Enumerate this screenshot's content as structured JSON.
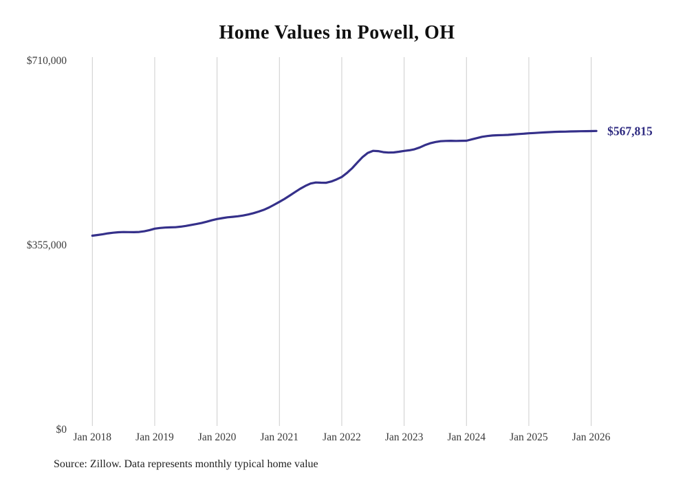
{
  "page": {
    "title": "Home Values in Powell, OH",
    "source_note": "Source: Zillow. Data represents monthly typical home value"
  },
  "chart_data": {
    "type": "line",
    "title": "Home Values in Powell, OH",
    "series_name": "Typical home value",
    "unit": "USD",
    "grid": "vertical-only",
    "legend": "none",
    "line_color": "#35308a",
    "end_label_color": "#2e2a80",
    "grid_color": "#cccccc",
    "ylim": [
      0,
      710000
    ],
    "y_ticks": [
      {
        "label": "$710,000",
        "value": 710000
      },
      {
        "label": "$355,000",
        "value": 355000
      },
      {
        "label": "$0",
        "value": 0
      }
    ],
    "x_ticks": [
      {
        "label": "Jan 2018",
        "month_index": 0
      },
      {
        "label": "Jan 2019",
        "month_index": 12
      },
      {
        "label": "Jan 2020",
        "month_index": 24
      },
      {
        "label": "Jan 2021",
        "month_index": 36
      },
      {
        "label": "Jan 2022",
        "month_index": 48
      },
      {
        "label": "Jan 2023",
        "month_index": 60
      },
      {
        "label": "Jan 2024",
        "month_index": 72
      },
      {
        "label": "Jan 2025",
        "month_index": 84
      },
      {
        "label": "Jan 2026",
        "month_index": 96
      }
    ],
    "x_months": [
      "2018-01",
      "2018-02",
      "2018-03",
      "2018-04",
      "2018-05",
      "2018-06",
      "2018-07",
      "2018-08",
      "2018-09",
      "2018-10",
      "2018-11",
      "2018-12",
      "2019-01",
      "2019-02",
      "2019-03",
      "2019-04",
      "2019-05",
      "2019-06",
      "2019-07",
      "2019-08",
      "2019-09",
      "2019-10",
      "2019-11",
      "2019-12",
      "2020-01",
      "2020-02",
      "2020-03",
      "2020-04",
      "2020-05",
      "2020-06",
      "2020-07",
      "2020-08",
      "2020-09",
      "2020-10",
      "2020-11",
      "2020-12",
      "2021-01",
      "2021-02",
      "2021-03",
      "2021-04",
      "2021-05",
      "2021-06",
      "2021-07",
      "2021-08",
      "2021-09",
      "2021-10",
      "2021-11",
      "2021-12",
      "2022-01",
      "2022-02",
      "2022-03",
      "2022-04",
      "2022-05",
      "2022-06",
      "2022-07",
      "2022-08",
      "2022-09",
      "2022-10",
      "2022-11",
      "2022-12",
      "2023-01",
      "2023-02",
      "2023-03",
      "2023-04",
      "2023-05",
      "2023-06",
      "2023-07",
      "2023-08",
      "2023-09",
      "2023-10",
      "2023-11",
      "2023-12",
      "2024-01",
      "2024-02",
      "2024-03",
      "2024-04",
      "2024-05",
      "2024-06",
      "2024-07",
      "2024-08",
      "2024-09",
      "2024-10",
      "2024-11",
      "2024-12",
      "2025-01",
      "2025-02",
      "2025-03",
      "2025-04",
      "2025-05",
      "2025-06",
      "2025-07",
      "2025-08",
      "2025-09",
      "2025-10",
      "2025-11",
      "2025-12",
      "2026-01",
      "2026-02"
    ],
    "values": [
      366300,
      367600,
      369100,
      370700,
      372000,
      372900,
      373300,
      373200,
      373000,
      373400,
      374700,
      377000,
      379800,
      381100,
      381900,
      382300,
      382600,
      383600,
      385100,
      386900,
      388600,
      390600,
      393100,
      395900,
      398300,
      400100,
      401600,
      402600,
      403600,
      405100,
      407100,
      409600,
      412600,
      416100,
      420600,
      425900,
      431400,
      437100,
      443600,
      450100,
      456600,
      462100,
      466600,
      468600,
      468300,
      468100,
      470600,
      474600,
      479200,
      487100,
      496100,
      507100,
      517600,
      525600,
      529600,
      529100,
      527100,
      526300,
      526600,
      527900,
      529500,
      530600,
      532600,
      536100,
      540600,
      544100,
      546600,
      548100,
      548600,
      548900,
      548600,
      548900,
      549100,
      551600,
      554100,
      556600,
      558100,
      559100,
      559600,
      559900,
      560300,
      561100,
      561900,
      562600,
      563300,
      563900,
      564600,
      565100,
      565600,
      566100,
      566400,
      566600,
      566900,
      567100,
      567300,
      567500,
      567600,
      567815
    ],
    "end_value": 567815,
    "end_label": "$567,815"
  }
}
